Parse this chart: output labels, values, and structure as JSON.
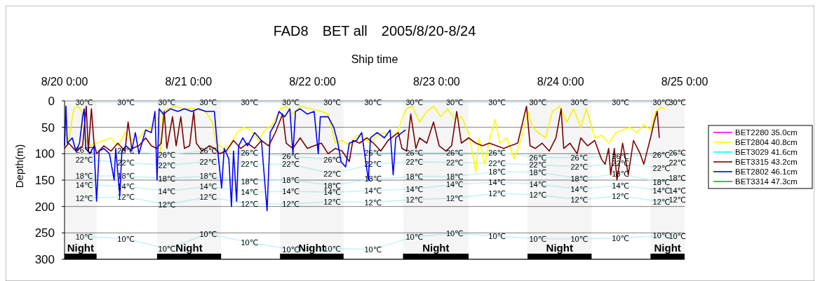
{
  "chart_data": {
    "type": "line",
    "title": "FAD8　BET all　2005/8/20-8/24",
    "xlabel": "Ship time",
    "ylabel": "Depth(m)",
    "xlim": [
      "2005-08-20T00:00",
      "2005-08-25T00:00"
    ],
    "xticks": [
      {
        "value": "2005-08-20T00:00",
        "label": "8/20 0:00"
      },
      {
        "value": "2005-08-21T00:00",
        "label": "8/21 0:00"
      },
      {
        "value": "2005-08-22T00:00",
        "label": "8/22 0:00"
      },
      {
        "value": "2005-08-23T00:00",
        "label": "8/23 0:00"
      },
      {
        "value": "2005-08-24T00:00",
        "label": "8/24 0:00"
      },
      {
        "value": "2005-08-25T00:00",
        "label": "8/25 0:00"
      }
    ],
    "ylim": [
      300,
      0
    ],
    "yticks": [
      0,
      50,
      100,
      150,
      200,
      250,
      300
    ],
    "grid": "y",
    "legend": "right",
    "bands": [
      {
        "axis": "x",
        "from": "2005-08-20T00:00",
        "to": "2005-08-20T06:12",
        "label": "Night",
        "color": "#000000"
      },
      {
        "axis": "x",
        "from": "2005-08-20T17:54",
        "to": "2005-08-21T06:18",
        "label": "Night",
        "color": "#000000"
      },
      {
        "axis": "x",
        "from": "2005-08-21T17:42",
        "to": "2005-08-22T06:00",
        "label": "Night",
        "color": "#000000"
      },
      {
        "axis": "x",
        "from": "2005-08-22T17:30",
        "to": "2005-08-23T06:12",
        "label": "Night",
        "color": "#000000"
      },
      {
        "axis": "x",
        "from": "2005-08-23T17:36",
        "to": "2005-08-24T06:00",
        "label": "Night",
        "color": "#000000"
      },
      {
        "axis": "x",
        "from": "2005-08-24T17:24",
        "to": "2005-08-25T00:00",
        "label": "Night",
        "color": "#000000"
      }
    ],
    "series": [
      {
        "color": "#c8f4f4",
        "x": [
          "2005-08-20T03:48",
          "2005-08-20T11:54",
          "2005-08-20T19:48",
          "2005-08-21T03:48",
          "2005-08-21T11:48",
          "2005-08-21T19:48",
          "2005-08-22T03:48",
          "2005-08-22T11:42",
          "2005-08-22T19:42",
          "2005-08-23T03:30",
          "2005-08-23T11:42",
          "2005-08-23T19:36",
          "2005-08-24T03:36",
          "2005-08-24T11:36",
          "2005-08-24T19:30",
          "2005-08-24T22:36"
        ],
        "values": [
          3,
          3,
          3,
          3,
          3,
          3,
          3,
          3,
          3,
          3,
          3,
          3,
          3,
          3,
          3,
          3
        ]
      },
      {
        "color": "#c8f4f4",
        "x": [
          "2005-08-20T03:48",
          "2005-08-20T11:54",
          "2005-08-20T19:48",
          "2005-08-21T03:48",
          "2005-08-21T11:48",
          "2005-08-21T19:48",
          "2005-08-22T03:48",
          "2005-08-22T11:42",
          "2005-08-22T19:42",
          "2005-08-23T03:30",
          "2005-08-23T11:42",
          "2005-08-23T19:36",
          "2005-08-24T03:36",
          "2005-08-24T11:36",
          "2005-08-24T19:30",
          "2005-08-24T22:36"
        ],
        "values": [
          93,
          94,
          102,
          94,
          98,
          105,
          111,
          98,
          98,
          98,
          98,
          107,
          107,
          105,
          102,
          98
        ]
      },
      {
        "color": "#c8f4f4",
        "x": [
          "2005-08-20T03:48",
          "2005-08-20T11:54",
          "2005-08-20T19:48",
          "2005-08-21T03:48",
          "2005-08-21T11:48",
          "2005-08-21T19:48",
          "2005-08-22T03:48",
          "2005-08-22T11:42",
          "2005-08-22T19:42",
          "2005-08-23T03:30",
          "2005-08-23T11:42",
          "2005-08-23T19:36",
          "2005-08-24T03:36",
          "2005-08-24T11:36",
          "2005-08-24T19:30",
          "2005-08-24T22:36"
        ],
        "values": [
          111,
          117,
          122,
          115,
          120,
          120,
          138,
          120,
          115,
          117,
          118,
          121,
          125,
          118,
          127,
          117
        ]
      },
      {
        "color": "#c8f4f4",
        "x": [
          "2005-08-20T03:48",
          "2005-08-20T11:54",
          "2005-08-20T19:48",
          "2005-08-21T03:48",
          "2005-08-21T11:48",
          "2005-08-21T19:48",
          "2005-08-22T03:48",
          "2005-08-22T11:42",
          "2005-08-22T19:42",
          "2005-08-23T03:30",
          "2005-08-23T11:42",
          "2005-08-23T19:36",
          "2005-08-24T03:36",
          "2005-08-24T11:36",
          "2005-08-24T19:30",
          "2005-08-24T22:36"
        ],
        "values": [
          142,
          142,
          147,
          142,
          152,
          150,
          160,
          148,
          143,
          143,
          134,
          135,
          147,
          138,
          154,
          146
        ]
      },
      {
        "color": "#c8f4f4",
        "x": [
          "2005-08-20T03:48",
          "2005-08-20T11:54",
          "2005-08-20T19:48",
          "2005-08-21T03:48",
          "2005-08-21T11:48",
          "2005-08-21T19:48",
          "2005-08-22T03:48",
          "2005-08-22T11:42",
          "2005-08-22T19:42",
          "2005-08-23T03:30",
          "2005-08-23T11:42",
          "2005-08-23T19:36",
          "2005-08-24T03:36",
          "2005-08-24T11:36",
          "2005-08-24T19:30",
          "2005-08-24T22:36"
        ],
        "values": [
          159,
          162,
          171,
          162,
          173,
          171,
          173,
          170,
          167,
          158,
          154,
          158,
          167,
          160,
          170,
          170
        ]
      },
      {
        "color": "#c8f4f4",
        "x": [
          "2005-08-20T03:48",
          "2005-08-20T11:54",
          "2005-08-20T19:48",
          "2005-08-21T03:48",
          "2005-08-21T11:48",
          "2005-08-21T19:48",
          "2005-08-22T03:48",
          "2005-08-22T11:42",
          "2005-08-22T19:42",
          "2005-08-23T03:30",
          "2005-08-23T11:42",
          "2005-08-23T19:36",
          "2005-08-24T03:36",
          "2005-08-24T11:36",
          "2005-08-24T19:30",
          "2005-08-24T22:36"
        ],
        "values": [
          184,
          182,
          196,
          182,
          195,
          195,
          191,
          192,
          187,
          184,
          175,
          178,
          187,
          180,
          191,
          187
        ]
      },
      {
        "color": "#c8f4f4",
        "x": [
          "2005-08-20T03:48",
          "2005-08-20T11:54",
          "2005-08-20T19:48",
          "2005-08-21T03:48",
          "2005-08-21T11:48",
          "2005-08-21T19:48",
          "2005-08-22T03:48",
          "2005-08-22T11:42",
          "2005-08-22T19:42",
          "2005-08-23T03:30",
          "2005-08-23T11:42",
          "2005-08-23T19:36",
          "2005-08-24T03:36",
          "2005-08-24T11:36",
          "2005-08-24T19:30",
          "2005-08-24T22:36"
        ],
        "values": [
          257,
          261,
          280,
          252,
          268,
          281,
          280,
          281,
          257,
          251,
          256,
          261,
          261,
          260,
          255,
          256
        ]
      },
      {
        "name": "BET2280 35.0cm",
        "color": "#ff00ff"
      },
      {
        "name": "BET2804 40.8cm",
        "color": "#ffff00",
        "x": [
          "2005-08-20T00:00",
          "2005-08-20T00:48",
          "2005-08-20T01:48",
          "2005-08-20T02:36",
          "2005-08-20T03:18",
          "2005-08-20T03:48",
          "2005-08-20T04:54",
          "2005-08-20T06:12",
          "2005-08-20T07:36",
          "2005-08-20T09:00",
          "2005-08-20T10:18",
          "2005-08-20T11:42",
          "2005-08-20T13:00",
          "2005-08-20T14:24",
          "2005-08-20T15:42",
          "2005-08-20T17:06",
          "2005-08-20T18:12",
          "2005-08-20T18:36",
          "2005-08-20T19:06",
          "2005-08-20T21:12",
          "2005-08-20T23:12",
          "2005-08-21T01:12",
          "2005-08-21T03:18",
          "2005-08-21T04:36",
          "2005-08-21T05:18",
          "2005-08-21T06:42",
          "2005-08-21T08:00",
          "2005-08-21T09:24",
          "2005-08-21T10:42",
          "2005-08-21T12:06",
          "2005-08-21T13:30",
          "2005-08-21T14:48",
          "2005-08-21T16:12",
          "2005-08-21T17:48",
          "2005-08-21T18:54",
          "2005-08-21T20:12",
          "2005-08-21T21:36",
          "2005-08-21T23:36",
          "2005-08-22T01:42",
          "2005-08-22T03:00",
          "2005-08-22T04:24",
          "2005-08-22T05:42",
          "2005-08-22T07:06",
          "2005-08-22T08:30",
          "2005-08-22T09:48",
          "2005-08-22T11:12",
          "2005-08-22T12:30",
          "2005-08-22T13:54",
          "2005-08-22T15:12",
          "2005-08-22T16:36",
          "2005-08-22T17:24",
          "2005-08-22T18:12",
          "2005-08-22T19:18",
          "2005-08-22T20:42",
          "2005-08-22T22:06",
          "2005-08-22T23:24",
          "2005-08-23T00:48",
          "2005-08-23T02:06",
          "2005-08-23T03:30",
          "2005-08-23T04:48",
          "2005-08-23T06:12",
          "2005-08-23T07:36",
          "2005-08-23T08:12",
          "2005-08-23T09:18",
          "2005-08-23T10:12",
          "2005-08-23T11:18",
          "2005-08-23T12:18",
          "2005-08-23T13:36",
          "2005-08-23T15:00",
          "2005-08-23T16:18",
          "2005-08-23T17:42",
          "2005-08-23T18:36",
          "2005-08-23T19:42",
          "2005-08-23T21:06",
          "2005-08-23T22:24",
          "2005-08-23T23:48",
          "2005-08-24T01:12",
          "2005-08-24T02:30",
          "2005-08-24T03:54",
          "2005-08-24T05:00",
          "2005-08-24T06:36",
          "2005-08-24T07:54",
          "2005-08-24T09:18",
          "2005-08-24T10:42",
          "2005-08-24T12:00",
          "2005-08-24T13:24",
          "2005-08-24T14:42",
          "2005-08-24T16:06",
          "2005-08-24T17:24",
          "2005-08-24T18:24",
          "2005-08-24T19:30",
          "2005-08-24T20:12"
        ],
        "values": [
          60,
          75,
          15,
          10,
          20,
          70,
          85,
          80,
          75,
          70,
          85,
          60,
          75,
          70,
          55,
          50,
          30,
          100,
          20,
          10,
          15,
          15,
          20,
          40,
          80,
          90,
          85,
          60,
          50,
          55,
          75,
          55,
          45,
          15,
          10,
          25,
          10,
          15,
          20,
          25,
          80,
          75,
          85,
          65,
          70,
          80,
          65,
          60,
          70,
          55,
          30,
          15,
          10,
          40,
          20,
          10,
          30,
          15,
          35,
          30,
          60,
          135,
          70,
          120,
          75,
          35,
          80,
          70,
          110,
          75,
          20,
          50,
          60,
          70,
          20,
          10,
          40,
          15,
          50,
          15,
          70,
          65,
          80,
          60,
          55,
          50,
          60,
          45,
          55,
          20,
          12,
          15
        ]
      },
      {
        "name": "BET3029 41.6cm",
        "color": "#00ffff"
      },
      {
        "name": "BET3315 43.2cm",
        "color": "#800000",
        "x": [
          "2005-08-20T00:00",
          "2005-08-20T00:48",
          "2005-08-20T02:12",
          "2005-08-20T03:30",
          "2005-08-20T04:12",
          "2005-08-20T04:36",
          "2005-08-20T05:12",
          "2005-08-20T05:42",
          "2005-08-20T06:12",
          "2005-08-20T07:36",
          "2005-08-20T09:00",
          "2005-08-20T10:18",
          "2005-08-20T11:42",
          "2005-08-20T12:18",
          "2005-08-20T13:00",
          "2005-08-20T14:24",
          "2005-08-20T15:42",
          "2005-08-20T16:48",
          "2005-08-20T17:48",
          "2005-08-20T18:42",
          "2005-08-20T19:18",
          "2005-08-20T19:48",
          "2005-08-20T20:54",
          "2005-08-20T21:36",
          "2005-08-20T22:30",
          "2005-08-20T23:12",
          "2005-08-21T00:12",
          "2005-08-21T01:00",
          "2005-08-21T01:30",
          "2005-08-21T02:36",
          "2005-08-21T04:00",
          "2005-08-21T05:00",
          "2005-08-21T06:00",
          "2005-08-21T07:18",
          "2005-08-21T08:42",
          "2005-08-21T10:06",
          "2005-08-21T11:24",
          "2005-08-21T12:48",
          "2005-08-21T14:06",
          "2005-08-21T15:30",
          "2005-08-21T16:48",
          "2005-08-21T18:12",
          "2005-08-21T18:54",
          "2005-08-21T20:12",
          "2005-08-21T21:36",
          "2005-08-21T23:00",
          "2005-08-22T00:18",
          "2005-08-22T01:42",
          "2005-08-22T03:00",
          "2005-08-22T04:24",
          "2005-08-22T05:42",
          "2005-08-22T07:06",
          "2005-08-22T07:48",
          "2005-08-22T09:06",
          "2005-08-22T10:30",
          "2005-08-22T11:48",
          "2005-08-22T13:12",
          "2005-08-22T14:36",
          "2005-08-22T16:36",
          "2005-08-22T17:18",
          "2005-08-22T18:12",
          "2005-08-22T19:00",
          "2005-08-22T20:00",
          "2005-08-22T20:42",
          "2005-08-22T22:06",
          "2005-08-22T23:24",
          "2005-08-23T00:30",
          "2005-08-23T01:48",
          "2005-08-23T02:54",
          "2005-08-23T03:54",
          "2005-08-23T04:48",
          "2005-08-23T06:12",
          "2005-08-23T07:36",
          "2005-08-23T08:54",
          "2005-08-23T10:12",
          "2005-08-23T11:36",
          "2005-08-23T13:00",
          "2005-08-23T14:18",
          "2005-08-23T15:42",
          "2005-08-23T17:24",
          "2005-08-23T18:06",
          "2005-08-23T19:06",
          "2005-08-23T20:24",
          "2005-08-23T21:48",
          "2005-08-23T23:06",
          "2005-08-24T00:06",
          "2005-08-24T00:36",
          "2005-08-24T01:48",
          "2005-08-24T03:12",
          "2005-08-24T03:54",
          "2005-08-24T05:12",
          "2005-08-24T06:36",
          "2005-08-24T07:54",
          "2005-08-24T08:36",
          "2005-08-24T09:18",
          "2005-08-24T09:42",
          "2005-08-24T10:24",
          "2005-08-24T10:54",
          "2005-08-24T12:00",
          "2005-08-24T13:06",
          "2005-08-24T14:06",
          "2005-08-24T15:24",
          "2005-08-24T16:06",
          "2005-08-24T17:24",
          "2005-08-24T18:06",
          "2005-08-24T18:42",
          "2005-08-24T19:06"
        ],
        "values": [
          90,
          80,
          95,
          85,
          10,
          95,
          15,
          80,
          100,
          85,
          95,
          80,
          95,
          40,
          90,
          85,
          70,
          85,
          90,
          80,
          20,
          90,
          30,
          85,
          30,
          90,
          85,
          20,
          80,
          95,
          85,
          90,
          100,
          95,
          75,
          90,
          80,
          90,
          75,
          85,
          60,
          25,
          80,
          90,
          70,
          90,
          85,
          80,
          100,
          90,
          95,
          115,
          75,
          80,
          70,
          80,
          95,
          75,
          60,
          90,
          95,
          25,
          90,
          70,
          80,
          40,
          85,
          95,
          85,
          20,
          80,
          70,
          80,
          85,
          80,
          85,
          90,
          85,
          80,
          10,
          85,
          90,
          80,
          95,
          70,
          15,
          90,
          80,
          100,
          70,
          85,
          75,
          110,
          120,
          90,
          140,
          90,
          150,
          80,
          140,
          75,
          100,
          120,
          70,
          40,
          20,
          70
        ]
      },
      {
        "name": "BET2802 46.1cm",
        "color": "#0000ff",
        "x": [
          "2005-08-20T00:00",
          "2005-08-20T00:16",
          "2005-08-20T00:32",
          "2005-08-20T01:30",
          "2005-08-20T02:12",
          "2005-08-20T02:54",
          "2005-08-20T03:30",
          "2005-08-20T03:48",
          "2005-08-20T04:06",
          "2005-08-20T04:54",
          "2005-08-20T05:42",
          "2005-08-20T06:12",
          "2005-08-20T06:42",
          "2005-08-20T07:36",
          "2005-08-20T08:42",
          "2005-08-20T09:36",
          "2005-08-20T09:54",
          "2005-08-20T10:42",
          "2005-08-20T11:06",
          "2005-08-20T11:54",
          "2005-08-20T13:00",
          "2005-08-20T13:42",
          "2005-08-20T14:24",
          "2005-08-20T15:42",
          "2005-08-20T16:48",
          "2005-08-20T17:30",
          "2005-08-20T17:54",
          "2005-08-20T18:18",
          "2005-08-20T19:06",
          "2005-08-20T20:30",
          "2005-08-20T21:54",
          "2005-08-20T23:12",
          "2005-08-21T00:36",
          "2005-08-21T01:54",
          "2005-08-21T03:18",
          "2005-08-21T05:00",
          "2005-08-21T05:42",
          "2005-08-21T06:24",
          "2005-08-21T06:54",
          "2005-08-21T07:48",
          "2005-08-21T08:18",
          "2005-08-21T08:42",
          "2005-08-21T09:18",
          "2005-08-21T09:42",
          "2005-08-21T10:30",
          "2005-08-21T11:24",
          "2005-08-21T12:48",
          "2005-08-21T14:06",
          "2005-08-21T15:12",
          "2005-08-21T15:48",
          "2005-08-21T16:54",
          "2005-08-21T17:30",
          "2005-08-21T18:36",
          "2005-08-21T19:36",
          "2005-08-21T20:12",
          "2005-08-21T20:42",
          "2005-08-21T21:36",
          "2005-08-21T23:00",
          "2005-08-22T00:18",
          "2005-08-22T01:06",
          "2005-08-22T01:30",
          "2005-08-22T03:00",
          "2005-08-22T04:06",
          "2005-08-22T04:54",
          "2005-08-22T05:30",
          "2005-08-22T06:24",
          "2005-08-22T07:06",
          "2005-08-22T08:30",
          "2005-08-22T09:30",
          "2005-08-22T10:48",
          "2005-08-22T11:12",
          "2005-08-22T12:30",
          "2005-08-22T13:54",
          "2005-08-22T15:00",
          "2005-08-22T15:36",
          "2005-08-22T16:06",
          "2005-08-22T17:18",
          "2005-08-22T18:00"
        ],
        "values": [
          85,
          10,
          80,
          70,
          95,
          80,
          30,
          15,
          90,
          100,
          85,
          190,
          95,
          90,
          100,
          150,
          90,
          180,
          95,
          85,
          95,
          60,
          100,
          55,
          60,
          20,
          150,
          15,
          25,
          15,
          20,
          15,
          20,
          15,
          20,
          20,
          100,
          165,
          90,
          110,
          200,
          95,
          190,
          85,
          70,
          85,
          60,
          75,
          208,
          60,
          40,
          20,
          30,
          15,
          100,
          20,
          15,
          25,
          20,
          100,
          30,
          30,
          50,
          80,
          115,
          125,
          80,
          75,
          60,
          150,
          70,
          60,
          70,
          55,
          140,
          70,
          60,
          55
        ]
      },
      {
        "name": "BET3314 47.3cm",
        "color": "#00c000"
      }
    ],
    "annotations": [
      {
        "text": "30℃",
        "x": "2005-08-20T03:48",
        "y": 3
      },
      {
        "text": "30℃",
        "x": "2005-08-20T11:54",
        "y": 3
      },
      {
        "text": "30℃",
        "x": "2005-08-20T19:48",
        "y": 3
      },
      {
        "text": "30℃",
        "x": "2005-08-21T03:48",
        "y": 3
      },
      {
        "text": "30℃",
        "x": "2005-08-21T11:48",
        "y": 3
      },
      {
        "text": "30℃",
        "x": "2005-08-21T19:48",
        "y": 3
      },
      {
        "text": "30℃",
        "x": "2005-08-22T03:48",
        "y": 3
      },
      {
        "text": "30℃",
        "x": "2005-08-22T11:42",
        "y": 3
      },
      {
        "text": "30℃",
        "x": "2005-08-22T19:42",
        "y": 3
      },
      {
        "text": "30℃",
        "x": "2005-08-23T03:30",
        "y": 3
      },
      {
        "text": "30℃",
        "x": "2005-08-23T11:42",
        "y": 3
      },
      {
        "text": "30℃",
        "x": "2005-08-23T19:36",
        "y": 3
      },
      {
        "text": "30℃",
        "x": "2005-08-24T03:36",
        "y": 3
      },
      {
        "text": "30℃",
        "x": "2005-08-24T11:36",
        "y": 3
      },
      {
        "text": "30℃",
        "x": "2005-08-24T19:30",
        "y": 3
      },
      {
        "text": "30℃",
        "x": "2005-08-24T22:36",
        "y": 3
      },
      {
        "text": "26℃",
        "x": "2005-08-20T03:48",
        "y": 93
      },
      {
        "text": "26℃",
        "x": "2005-08-20T11:54",
        "y": 94
      },
      {
        "text": "26℃",
        "x": "2005-08-20T19:48",
        "y": 102
      },
      {
        "text": "26℃",
        "x": "2005-08-21T03:48",
        "y": 94
      },
      {
        "text": "26℃",
        "x": "2005-08-21T11:48",
        "y": 98
      },
      {
        "text": "26℃",
        "x": "2005-08-21T19:48",
        "y": 105
      },
      {
        "text": "26℃",
        "x": "2005-08-22T03:48",
        "y": 111
      },
      {
        "text": "26℃",
        "x": "2005-08-22T11:42",
        "y": 98
      },
      {
        "text": "26℃",
        "x": "2005-08-22T19:42",
        "y": 98
      },
      {
        "text": "26℃",
        "x": "2005-08-23T03:30",
        "y": 98
      },
      {
        "text": "26℃",
        "x": "2005-08-23T11:42",
        "y": 98
      },
      {
        "text": "26℃",
        "x": "2005-08-23T19:36",
        "y": 107
      },
      {
        "text": "26℃",
        "x": "2005-08-24T03:36",
        "y": 107
      },
      {
        "text": "26℃",
        "x": "2005-08-24T11:36",
        "y": 105
      },
      {
        "text": "26℃",
        "x": "2005-08-24T19:30",
        "y": 102
      },
      {
        "text": "26℃",
        "x": "2005-08-24T22:36",
        "y": 98
      },
      {
        "text": "22℃",
        "x": "2005-08-20T03:48",
        "y": 111
      },
      {
        "text": "22℃",
        "x": "2005-08-20T11:54",
        "y": 117
      },
      {
        "text": "22℃",
        "x": "2005-08-20T19:48",
        "y": 122
      },
      {
        "text": "22℃",
        "x": "2005-08-21T03:48",
        "y": 115
      },
      {
        "text": "22℃",
        "x": "2005-08-21T11:48",
        "y": 120
      },
      {
        "text": "22℃",
        "x": "2005-08-21T19:48",
        "y": 120
      },
      {
        "text": "22℃",
        "x": "2005-08-22T03:48",
        "y": 138
      },
      {
        "text": "22℃",
        "x": "2005-08-22T11:42",
        "y": 120
      },
      {
        "text": "22℃",
        "x": "2005-08-22T19:42",
        "y": 115
      },
      {
        "text": "22℃",
        "x": "2005-08-23T03:30",
        "y": 117
      },
      {
        "text": "22℃",
        "x": "2005-08-23T11:42",
        "y": 118
      },
      {
        "text": "22℃",
        "x": "2005-08-23T19:36",
        "y": 121
      },
      {
        "text": "22℃",
        "x": "2005-08-24T03:36",
        "y": 125
      },
      {
        "text": "22℃",
        "x": "2005-08-24T11:36",
        "y": 118
      },
      {
        "text": "22℃",
        "x": "2005-08-24T19:30",
        "y": 127
      },
      {
        "text": "22℃",
        "x": "2005-08-24T22:36",
        "y": 117
      },
      {
        "text": "18℃",
        "x": "2005-08-20T03:48",
        "y": 142
      },
      {
        "text": "18℃",
        "x": "2005-08-20T11:54",
        "y": 142
      },
      {
        "text": "18℃",
        "x": "2005-08-20T19:48",
        "y": 147
      },
      {
        "text": "18℃",
        "x": "2005-08-21T03:48",
        "y": 142
      },
      {
        "text": "18℃",
        "x": "2005-08-21T11:48",
        "y": 152
      },
      {
        "text": "18℃",
        "x": "2005-08-21T19:48",
        "y": 150
      },
      {
        "text": "18℃",
        "x": "2005-08-22T03:48",
        "y": 160
      },
      {
        "text": "18℃",
        "x": "2005-08-22T11:42",
        "y": 148
      },
      {
        "text": "18℃",
        "x": "2005-08-22T19:42",
        "y": 143
      },
      {
        "text": "18℃",
        "x": "2005-08-23T03:30",
        "y": 143
      },
      {
        "text": "18℃",
        "x": "2005-08-23T11:42",
        "y": 134
      },
      {
        "text": "18℃",
        "x": "2005-08-23T19:36",
        "y": 135
      },
      {
        "text": "18℃",
        "x": "2005-08-24T03:36",
        "y": 147
      },
      {
        "text": "18℃",
        "x": "2005-08-24T11:36",
        "y": 138
      },
      {
        "text": "18℃",
        "x": "2005-08-24T19:30",
        "y": 154
      },
      {
        "text": "18℃",
        "x": "2005-08-24T22:36",
        "y": 146
      },
      {
        "text": "14℃",
        "x": "2005-08-20T03:48",
        "y": 159
      },
      {
        "text": "14℃",
        "x": "2005-08-20T11:54",
        "y": 162
      },
      {
        "text": "14℃",
        "x": "2005-08-20T19:48",
        "y": 171
      },
      {
        "text": "14℃",
        "x": "2005-08-21T03:48",
        "y": 162
      },
      {
        "text": "14℃",
        "x": "2005-08-21T11:48",
        "y": 173
      },
      {
        "text": "14℃",
        "x": "2005-08-21T19:48",
        "y": 171
      },
      {
        "text": "14℃",
        "x": "2005-08-22T03:48",
        "y": 173
      },
      {
        "text": "14℃",
        "x": "2005-08-22T11:42",
        "y": 170
      },
      {
        "text": "14℃",
        "x": "2005-08-22T19:42",
        "y": 167
      },
      {
        "text": "14℃",
        "x": "2005-08-23T03:30",
        "y": 158
      },
      {
        "text": "14℃",
        "x": "2005-08-23T11:42",
        "y": 154
      },
      {
        "text": "14℃",
        "x": "2005-08-23T19:36",
        "y": 158
      },
      {
        "text": "14℃",
        "x": "2005-08-24T03:36",
        "y": 167
      },
      {
        "text": "14℃",
        "x": "2005-08-24T11:36",
        "y": 160
      },
      {
        "text": "14℃",
        "x": "2005-08-24T19:30",
        "y": 170
      },
      {
        "text": "14℃",
        "x": "2005-08-24T22:36",
        "y": 170
      },
      {
        "text": "12℃",
        "x": "2005-08-20T03:48",
        "y": 184
      },
      {
        "text": "12℃",
        "x": "2005-08-20T11:54",
        "y": 182
      },
      {
        "text": "12℃",
        "x": "2005-08-20T19:48",
        "y": 196
      },
      {
        "text": "12℃",
        "x": "2005-08-21T03:48",
        "y": 182
      },
      {
        "text": "12℃",
        "x": "2005-08-21T11:48",
        "y": 195
      },
      {
        "text": "12℃",
        "x": "2005-08-21T19:48",
        "y": 195
      },
      {
        "text": "12℃",
        "x": "2005-08-22T03:48",
        "y": 191
      },
      {
        "text": "12℃",
        "x": "2005-08-22T11:42",
        "y": 192
      },
      {
        "text": "12℃",
        "x": "2005-08-22T19:42",
        "y": 187
      },
      {
        "text": "12℃",
        "x": "2005-08-23T03:30",
        "y": 184
      },
      {
        "text": "12℃",
        "x": "2005-08-23T11:42",
        "y": 175
      },
      {
        "text": "12℃",
        "x": "2005-08-23T19:36",
        "y": 178
      },
      {
        "text": "12℃",
        "x": "2005-08-24T03:36",
        "y": 187
      },
      {
        "text": "12℃",
        "x": "2005-08-24T11:36",
        "y": 180
      },
      {
        "text": "12℃",
        "x": "2005-08-24T19:30",
        "y": 191
      },
      {
        "text": "12℃",
        "x": "2005-08-24T22:36",
        "y": 187
      },
      {
        "text": "10℃",
        "x": "2005-08-20T03:48",
        "y": 257
      },
      {
        "text": "10℃",
        "x": "2005-08-20T11:54",
        "y": 261
      },
      {
        "text": "10℃",
        "x": "2005-08-20T19:48",
        "y": 280
      },
      {
        "text": "10℃",
        "x": "2005-08-21T03:48",
        "y": 252
      },
      {
        "text": "10℃",
        "x": "2005-08-21T11:48",
        "y": 268
      },
      {
        "text": "10℃",
        "x": "2005-08-21T19:48",
        "y": 281
      },
      {
        "text": "10℃",
        "x": "2005-08-22T03:48",
        "y": 280
      },
      {
        "text": "10℃",
        "x": "2005-08-22T11:42",
        "y": 281
      },
      {
        "text": "10℃",
        "x": "2005-08-22T19:42",
        "y": 257
      },
      {
        "text": "10℃",
        "x": "2005-08-23T03:30",
        "y": 251
      },
      {
        "text": "10℃",
        "x": "2005-08-23T11:42",
        "y": 256
      },
      {
        "text": "10℃",
        "x": "2005-08-23T19:36",
        "y": 261
      },
      {
        "text": "10℃",
        "x": "2005-08-24T03:36",
        "y": 261
      },
      {
        "text": "10℃",
        "x": "2005-08-24T11:36",
        "y": 260
      },
      {
        "text": "10℃",
        "x": "2005-08-24T19:30",
        "y": 255
      },
      {
        "text": "10℃",
        "x": "2005-08-24T22:36",
        "y": 256
      }
    ]
  }
}
